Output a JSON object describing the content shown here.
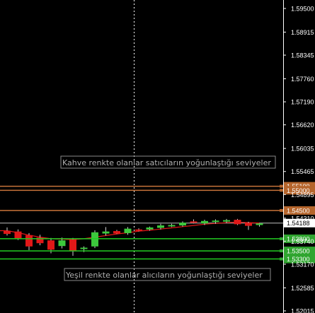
{
  "colors": {
    "background": "#000000",
    "axis": "#ffffff",
    "brown_level": "#c8733a",
    "brown_tag": "#b5652c",
    "green_level": "#22cc22",
    "green_tag": "#2fa52f",
    "bull_candle": "#3cc83c",
    "bear_candle": "#e01818",
    "moving_average": "#e01818",
    "price_line": "#c0c0c0",
    "note_text": "#b0b0b0"
  },
  "price_axis": {
    "ticks": [
      "1.59500",
      "1.58915",
      "1.58345",
      "1.57760",
      "1.57190",
      "1.56620",
      "1.56035",
      "1.55465",
      "1.54895",
      "1.54310",
      "1.53740",
      "1.53170",
      "1.52585",
      "1.52015"
    ],
    "range": [
      1.52015,
      1.5975
    ]
  },
  "chart_data": {
    "type": "candlestick",
    "current_price": "1.54188",
    "resistance_levels": [
      "1.55100",
      "1.55000",
      "1.54500"
    ],
    "support_levels": [
      "1.53800",
      "1.53500",
      "1.53300"
    ],
    "candles": [
      {
        "o": 1.54,
        "h": 1.5408,
        "l": 1.5388,
        "c": 1.5392
      },
      {
        "o": 1.5398,
        "h": 1.5403,
        "l": 1.5377,
        "c": 1.5381
      },
      {
        "o": 1.5389,
        "h": 1.5394,
        "l": 1.5352,
        "c": 1.5361
      },
      {
        "o": 1.5383,
        "h": 1.539,
        "l": 1.5364,
        "c": 1.5369
      },
      {
        "o": 1.5376,
        "h": 1.5382,
        "l": 1.5344,
        "c": 1.5353
      },
      {
        "o": 1.5362,
        "h": 1.5383,
        "l": 1.5356,
        "c": 1.5376
      },
      {
        "o": 1.5378,
        "h": 1.5382,
        "l": 1.5338,
        "c": 1.5349
      },
      {
        "o": 1.5355,
        "h": 1.5361,
        "l": 1.5347,
        "c": 1.5358
      },
      {
        "o": 1.5361,
        "h": 1.5401,
        "l": 1.5357,
        "c": 1.5396
      },
      {
        "o": 1.5393,
        "h": 1.5409,
        "l": 1.5388,
        "c": 1.5398
      },
      {
        "o": 1.5399,
        "h": 1.5402,
        "l": 1.5392,
        "c": 1.5393
      },
      {
        "o": 1.5394,
        "h": 1.5409,
        "l": 1.539,
        "c": 1.5405
      },
      {
        "o": 1.5403,
        "h": 1.5406,
        "l": 1.5398,
        "c": 1.5401
      },
      {
        "o": 1.5403,
        "h": 1.541,
        "l": 1.54,
        "c": 1.5408
      },
      {
        "o": 1.5407,
        "h": 1.5417,
        "l": 1.5403,
        "c": 1.5413
      },
      {
        "o": 1.5412,
        "h": 1.5417,
        "l": 1.5409,
        "c": 1.5414
      },
      {
        "o": 1.5413,
        "h": 1.5423,
        "l": 1.541,
        "c": 1.542
      },
      {
        "o": 1.5423,
        "h": 1.5428,
        "l": 1.5418,
        "c": 1.5421
      },
      {
        "o": 1.5418,
        "h": 1.5427,
        "l": 1.5414,
        "c": 1.5424
      },
      {
        "o": 1.5422,
        "h": 1.5428,
        "l": 1.5417,
        "c": 1.5425
      },
      {
        "o": 1.5424,
        "h": 1.5429,
        "l": 1.5419,
        "c": 1.5426
      },
      {
        "o": 1.5427,
        "h": 1.5429,
        "l": 1.5414,
        "c": 1.5416
      },
      {
        "o": 1.5419,
        "h": 1.5422,
        "l": 1.5402,
        "c": 1.5412
      },
      {
        "o": 1.5414,
        "h": 1.5419,
        "l": 1.541,
        "c": 1.5418
      }
    ],
    "moving_average": [
      1.54,
      1.5395,
      1.5389,
      1.5384,
      1.538,
      1.5379,
      1.5378,
      1.538,
      1.5384,
      1.5388,
      1.5392,
      1.5395,
      1.5399,
      1.5401,
      1.5404,
      1.5407,
      1.541,
      1.5413,
      1.5416,
      1.5418,
      1.542,
      1.5421,
      1.542,
      1.5419
    ]
  },
  "annotations": {
    "sellers_text": "Kahve renkte olanlar satıcıların yoğunlaştığı seviyeler",
    "buyers_text": "Yeşil renkte olanlar alıcıların yoğunlaştığı seviyeler"
  }
}
